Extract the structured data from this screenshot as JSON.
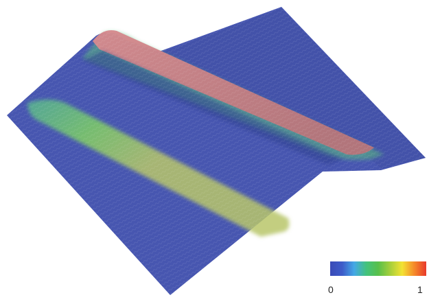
{
  "figure": {
    "colormap": [
      "#3a4bb7",
      "#3d5bc9",
      "#44a8e6",
      "#43c27e",
      "#58c04a",
      "#a6cf3b",
      "#f3e233",
      "#f58a2a",
      "#e8392b"
    ],
    "surface_base_color": "#4a59b2",
    "ridge_color": "#c97a7e",
    "band_color": "#5fbf77"
  },
  "colorbar": {
    "min_label": "0",
    "max_label": "1"
  }
}
